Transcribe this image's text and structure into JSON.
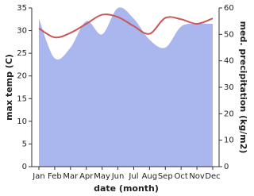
{
  "chart_data": {
    "type": "area_line",
    "x_label": "date (month)",
    "y_label": "max temp (C)",
    "y2_label": "med. precipitation (kg/m2)",
    "categories": [
      "Jan",
      "Feb",
      "Mar",
      "Apr",
      "May",
      "Jun",
      "Jul",
      "Aug",
      "Sep",
      "Oct",
      "Nov",
      "Dec"
    ],
    "series": [
      {
        "name": "med. precipitation (kg/m2)",
        "color": "#aab6ee",
        "axis": "y2",
        "values": [
          56,
          41,
          45,
          55,
          50,
          60,
          56,
          48,
          45,
          53,
          54,
          54
        ]
      },
      {
        "name": "max temp (C)",
        "color": "#c9575a",
        "axis": "y",
        "values": [
          30.5,
          28.5,
          29.5,
          31.5,
          33.5,
          33,
          31,
          29.3,
          32.8,
          32.5,
          31.5,
          32.7
        ]
      }
    ],
    "ylim": [
      0,
      35
    ],
    "yticks": [
      0,
      5,
      10,
      15,
      20,
      25,
      30,
      35
    ],
    "y2lim": [
      0,
      60
    ],
    "y2ticks": [
      0,
      10,
      20,
      30,
      40,
      50,
      60
    ]
  }
}
